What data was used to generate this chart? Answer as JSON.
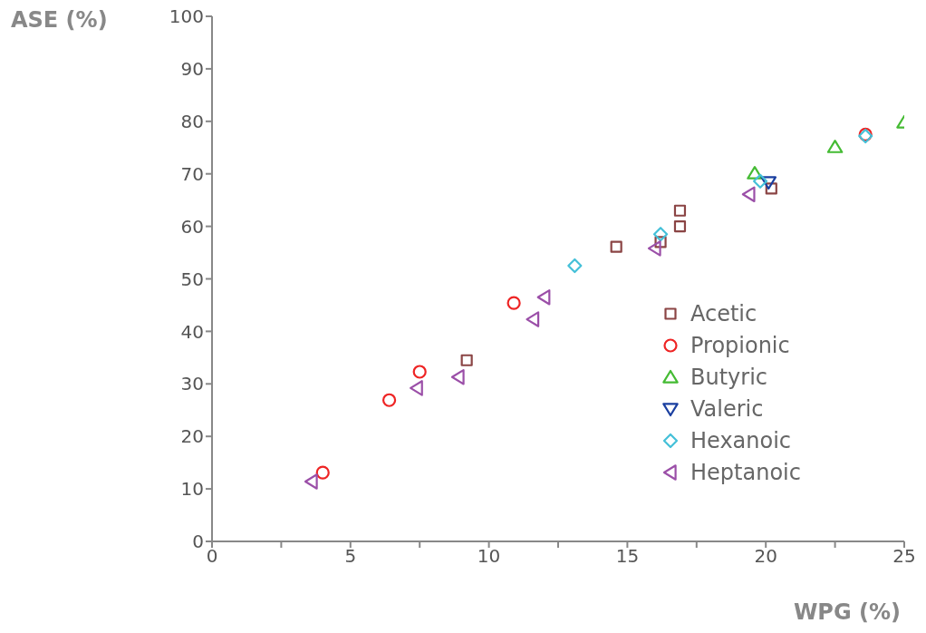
{
  "chart_data": {
    "type": "scatter",
    "xlabel": "WPG (%)",
    "ylabel": "ASE (%)",
    "xlim": [
      0,
      25
    ],
    "ylim": [
      0,
      100
    ],
    "xticks": [
      0,
      {
        "value": 2.5,
        "label": null
      },
      5,
      {
        "value": 7.5,
        "label": null
      },
      10,
      {
        "value": 12.5,
        "label": null
      },
      15,
      {
        "value": 17.5,
        "label": null
      },
      20,
      {
        "value": 22.5,
        "label": null
      },
      25
    ],
    "yticks": [
      0,
      10,
      20,
      30,
      40,
      50,
      60,
      70,
      80,
      90,
      100
    ],
    "grid": false,
    "legend": "bottom right",
    "series": [
      {
        "name": "Acetic",
        "color": "#8b4545",
        "marker": "square",
        "x": [
          9.2,
          14.6,
          16.2,
          16.9,
          16.9,
          20.2
        ],
        "values": [
          34.5,
          56.1,
          57,
          60,
          63,
          67.2
        ]
      },
      {
        "name": "Propionic",
        "color": "#ee2424",
        "marker": "circle",
        "x": [
          4.0,
          6.4,
          7.5,
          10.9,
          23.6
        ],
        "values": [
          13.1,
          26.9,
          32.3,
          45.4,
          77.5
        ]
      },
      {
        "name": "Butyric",
        "color": "#44bb33",
        "marker": "triangle",
        "x": [
          19.6,
          22.5,
          25.0
        ],
        "values": [
          70.1,
          75.1,
          79.8
        ]
      },
      {
        "name": "Valeric",
        "color": "#1a3fa0",
        "marker": "triangle-down",
        "x": [
          20.1
        ],
        "values": [
          68.4
        ]
      },
      {
        "name": "Hexanoic",
        "color": "#44c0d8",
        "marker": "diamond",
        "x": [
          13.1,
          16.2,
          19.8,
          23.6
        ],
        "values": [
          52.5,
          58.5,
          68.6,
          77.2
        ]
      },
      {
        "name": "Heptanoic",
        "color": "#9b4fa8",
        "marker": "triangle-left",
        "x": [
          3.6,
          7.4,
          8.9,
          11.6,
          12.0,
          16.0,
          19.4
        ],
        "values": [
          11.4,
          29.2,
          31.3,
          42.3,
          46.5,
          55.8,
          66.1
        ]
      }
    ]
  }
}
